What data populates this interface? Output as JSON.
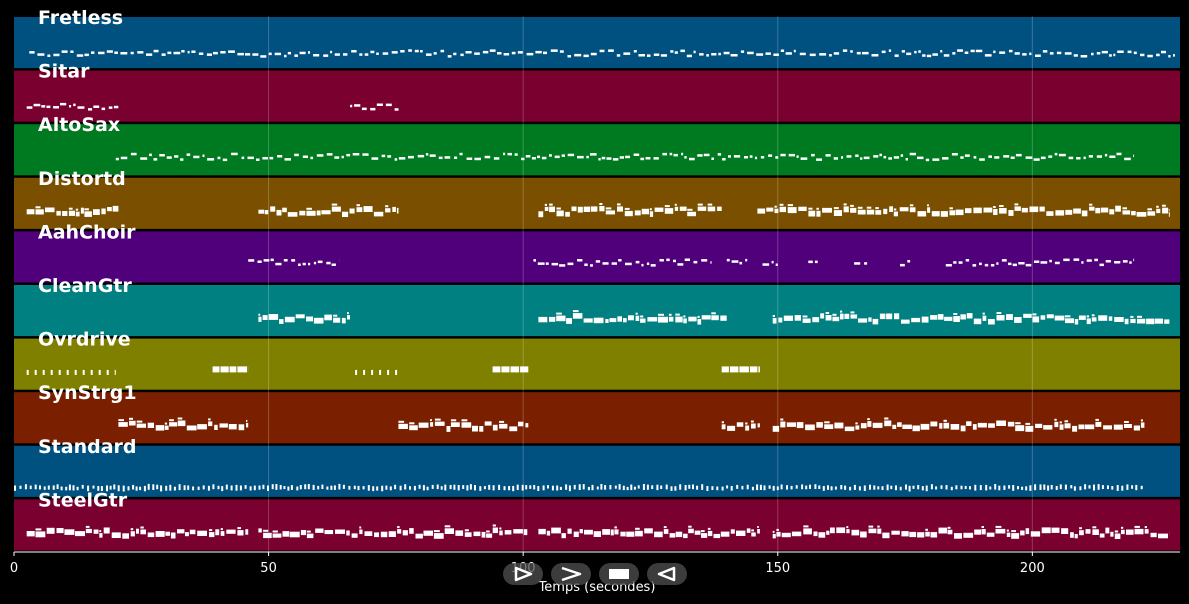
{
  "chart_data": {
    "type": "piano-roll",
    "xlabel": "Temps (secondes)",
    "xlim": [
      0,
      229
    ],
    "xticks": [
      0,
      50,
      100,
      150,
      200
    ],
    "grid": true,
    "tracks": [
      {
        "name": "Fretless",
        "color": "#005080",
        "segments": [
          [
            3,
            228
          ]
        ],
        "style": "scatter",
        "level": 0.55
      },
      {
        "name": "Sitar",
        "color": "#7a0030",
        "segments": [
          [
            2.5,
            20.5
          ],
          [
            66,
            75.5
          ]
        ],
        "style": "scatter",
        "level": 0.55
      },
      {
        "name": "AltoSax",
        "color": "#007a20",
        "segments": [
          [
            20,
            220
          ]
        ],
        "style": "scatter",
        "level": 0.48
      },
      {
        "name": "Distortd",
        "color": "#7a5000",
        "segments": [
          [
            2.5,
            20.5
          ],
          [
            48,
            75.5
          ],
          [
            103,
            139
          ],
          [
            146,
            227
          ]
        ],
        "style": "dense",
        "level": 0.5
      },
      {
        "name": "AahChoir",
        "color": "#50007a",
        "segments": [
          [
            46,
            64
          ],
          [
            102,
            137
          ],
          [
            140,
            144
          ],
          [
            147,
            150
          ],
          [
            156,
            158
          ],
          [
            165,
            168
          ],
          [
            174,
            176
          ],
          [
            183,
            220
          ]
        ],
        "style": "scatter",
        "level": 0.45
      },
      {
        "name": "CleanGtr",
        "color": "#008080",
        "segments": [
          [
            48,
            66
          ],
          [
            103,
            140
          ],
          [
            149,
            227
          ]
        ],
        "style": "dense",
        "level": 0.5
      },
      {
        "name": "Ovrdrive",
        "color": "#808000",
        "segments": [
          [
            2.5,
            20
          ],
          [
            39,
            46
          ],
          [
            67,
            75.5
          ],
          [
            94,
            101
          ],
          [
            139,
            146.5
          ]
        ],
        "style": "blocks",
        "level": 0.5
      },
      {
        "name": "SynStrg1",
        "color": "#7a2000",
        "segments": [
          [
            20.5,
            46
          ],
          [
            75.5,
            101
          ],
          [
            139,
            146.5
          ],
          [
            149,
            222
          ]
        ],
        "style": "dense",
        "level": 0.5
      },
      {
        "name": "Standard",
        "color": "#005080",
        "segments": [
          [
            0,
            222
          ]
        ],
        "style": "drums",
        "level": 0.65
      },
      {
        "name": "SteelGtr",
        "color": "#7a0030",
        "segments": [
          [
            2.5,
            46
          ],
          [
            48,
            101
          ],
          [
            103,
            146.5
          ],
          [
            149,
            227
          ]
        ],
        "style": "dense",
        "level": 0.5
      }
    ]
  },
  "controls": {
    "icons": [
      "play-icon",
      "fast-forward-icon",
      "stop-icon",
      "rewind-icon"
    ]
  }
}
